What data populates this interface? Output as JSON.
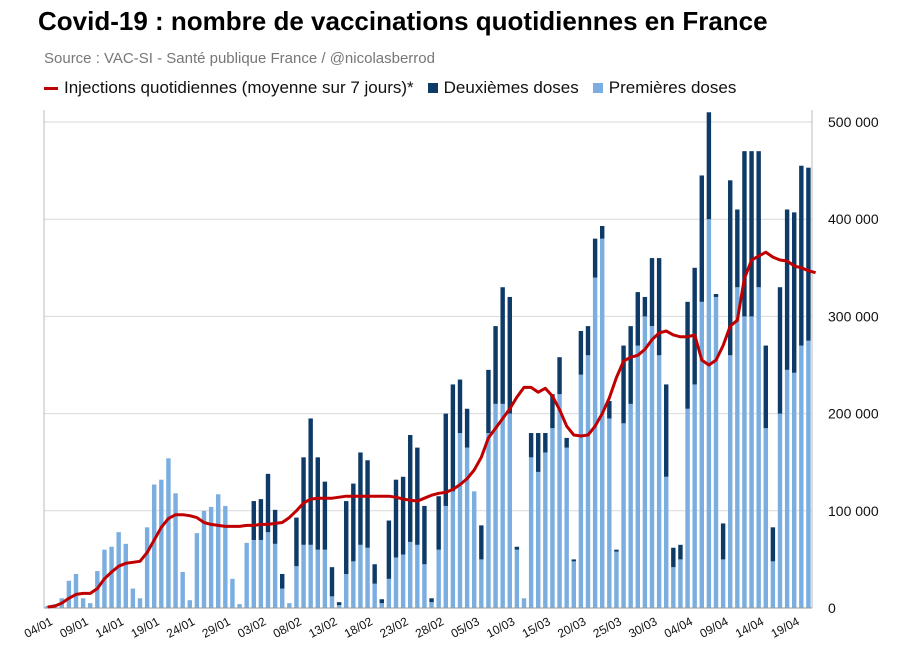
{
  "chart_data": {
    "type": "bar",
    "title": "Covid-19 : nombre de vaccinations quotidiennes en France",
    "subtitle": "Source : VAC-SI - Santé publique France / @nicolasberrod",
    "legend": [
      {
        "key": "avg",
        "label": "Injections quotidiennes (moyenne sur 7 jours)*",
        "color": "#c00000",
        "shape": "line"
      },
      {
        "key": "second",
        "label": "Deuxièmes doses",
        "color": "#0d3a66",
        "shape": "square"
      },
      {
        "key": "first",
        "label": "Premières doses",
        "color": "#7aaee0",
        "shape": "square"
      }
    ],
    "ylim": [
      0,
      500000
    ],
    "yticks": [
      0,
      100000,
      200000,
      300000,
      400000,
      500000
    ],
    "ytick_labels": [
      "0",
      "100 000",
      "200 000",
      "300 000",
      "400 000",
      "500 000"
    ],
    "xtick_labels": [
      "04/01",
      "09/01",
      "14/01",
      "19/01",
      "24/01",
      "29/01",
      "03/02",
      "08/02",
      "13/02",
      "18/02",
      "23/02",
      "28/02",
      "05/03",
      "10/03",
      "15/03",
      "20/03",
      "25/03",
      "30/03",
      "04/04",
      "09/04",
      "14/04",
      "19/04"
    ],
    "xtick_every": 5,
    "first_doses": [
      2000,
      4000,
      10000,
      28000,
      35000,
      10000,
      5000,
      38000,
      60000,
      63000,
      78000,
      66000,
      20000,
      10000,
      83000,
      127000,
      132000,
      154000,
      118000,
      37000,
      8000,
      77000,
      100000,
      104000,
      117000,
      105000,
      30000,
      4000,
      67000,
      70000,
      70000,
      78000,
      66000,
      20000,
      5000,
      43000,
      65000,
      65000,
      60000,
      60000,
      12000,
      3000,
      35000,
      48000,
      65000,
      62000,
      25000,
      5000,
      30000,
      52000,
      55000,
      68000,
      65000,
      45000,
      6000,
      60000,
      105000,
      120000,
      180000,
      165000,
      120000,
      50000,
      180000,
      210000,
      210000,
      200000,
      60000,
      10000,
      155000,
      140000,
      160000,
      185000,
      220000,
      165000,
      48000,
      240000,
      260000,
      340000,
      380000,
      195000,
      58000,
      190000,
      210000,
      270000,
      300000,
      290000,
      260000,
      135000,
      42000,
      50000,
      205000,
      230000,
      315000,
      400000,
      320000,
      50000,
      260000,
      330000,
      300000,
      300000,
      330000,
      185000,
      48000,
      200000,
      245000,
      242000,
      270000,
      275000
    ],
    "second_doses": [
      0,
      0,
      0,
      0,
      0,
      0,
      0,
      0,
      0,
      0,
      0,
      0,
      0,
      0,
      0,
      0,
      0,
      0,
      0,
      0,
      0,
      0,
      0,
      0,
      0,
      0,
      0,
      0,
      0,
      40000,
      42000,
      60000,
      35000,
      15000,
      0,
      50000,
      90000,
      130000,
      95000,
      70000,
      30000,
      3000,
      75000,
      80000,
      95000,
      90000,
      20000,
      4000,
      60000,
      80000,
      80000,
      110000,
      100000,
      60000,
      4000,
      55000,
      95000,
      110000,
      55000,
      40000,
      0,
      35000,
      65000,
      80000,
      120000,
      120000,
      3000,
      0,
      25000,
      40000,
      20000,
      35000,
      38000,
      10000,
      2000,
      45000,
      30000,
      40000,
      13000,
      18000,
      2000,
      80000,
      80000,
      55000,
      20000,
      70000,
      100000,
      95000,
      20000,
      15000,
      110000,
      120000,
      130000,
      110000,
      3000,
      37000,
      180000,
      80000,
      170000,
      170000,
      140000,
      85000,
      35000,
      130000,
      165000,
      165000,
      185000,
      178000
    ],
    "avg_line": [
      1000,
      2000,
      5000,
      10000,
      14000,
      15000,
      15000,
      20000,
      30000,
      37000,
      43000,
      46000,
      47000,
      48000,
      57000,
      70000,
      83000,
      92000,
      96000,
      96000,
      95000,
      93000,
      88000,
      86000,
      85000,
      84000,
      84000,
      84000,
      85000,
      85000,
      86000,
      86000,
      87000,
      88000,
      93000,
      100000,
      108000,
      112000,
      113000,
      113000,
      113000,
      114000,
      115000,
      115000,
      115000,
      115000,
      115000,
      115000,
      115000,
      114000,
      112000,
      111000,
      110000,
      113000,
      116000,
      118000,
      119000,
      122000,
      127000,
      133000,
      142000,
      155000,
      175000,
      185000,
      195000,
      205000,
      217000,
      227000,
      227000,
      222000,
      226000,
      218000,
      204000,
      187000,
      178000,
      177000,
      178000,
      187000,
      200000,
      216000,
      237000,
      254000,
      258000,
      260000,
      266000,
      276000,
      283000,
      285000,
      281000,
      279000,
      279000,
      281000,
      255000,
      250000,
      255000,
      270000,
      290000,
      296000,
      339000,
      358000,
      362000,
      366000,
      361000,
      358000,
      357000,
      352000,
      350000,
      347000,
      345000
    ]
  }
}
